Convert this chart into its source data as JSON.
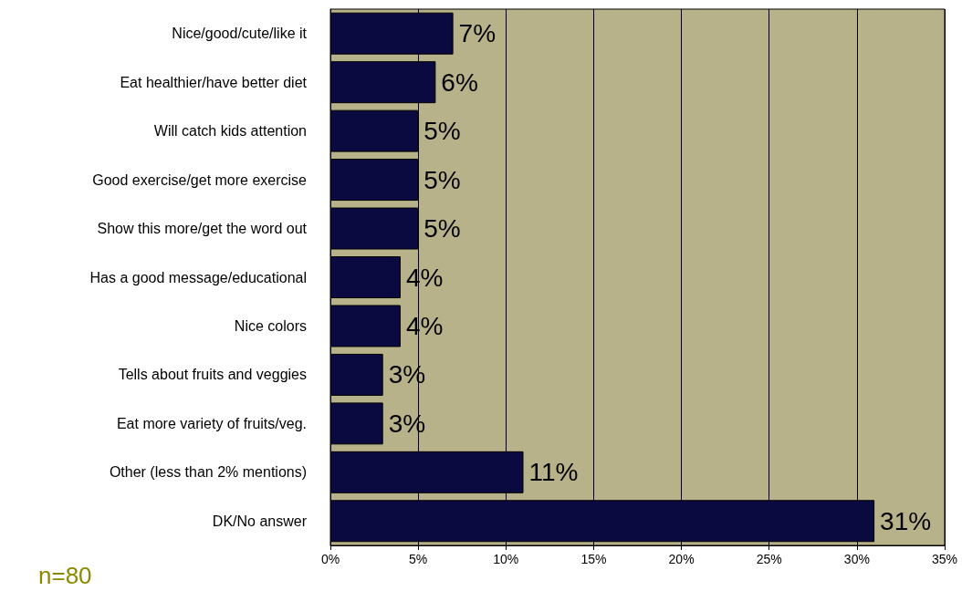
{
  "chart_data": {
    "type": "bar",
    "orientation": "horizontal",
    "categories": [
      "Nice/good/cute/like it",
      "Eat healthier/have better diet",
      "Will catch kids attention",
      "Good exercise/get more exercise",
      "Show this more/get the word out",
      "Has a good message/educational",
      "Nice colors",
      "Tells about fruits and veggies",
      "Eat more variety of fruits/veg.",
      "Other (less than 2% mentions)",
      "DK/No answer"
    ],
    "values": [
      7,
      6,
      5,
      5,
      5,
      4,
      4,
      3,
      3,
      11,
      31
    ],
    "value_labels": [
      "7%",
      "6%",
      "5%",
      "5%",
      "5%",
      "4%",
      "4%",
      "3%",
      "3%",
      "11%",
      "31%"
    ],
    "color": "#0a0a40",
    "xlim": [
      0,
      35
    ],
    "xticks": [
      {
        "value": 0,
        "label": "0%"
      },
      {
        "value": 5,
        "label": "5%"
      },
      {
        "value": 10,
        "label": "10%"
      },
      {
        "value": 15,
        "label": "15%"
      },
      {
        "value": 20,
        "label": "20%"
      },
      {
        "value": 25,
        "label": "25%"
      },
      {
        "value": 30,
        "label": "30%"
      },
      {
        "value": 35,
        "label": "35%"
      }
    ],
    "grid": "x",
    "annotations": [
      "n=80"
    ]
  }
}
